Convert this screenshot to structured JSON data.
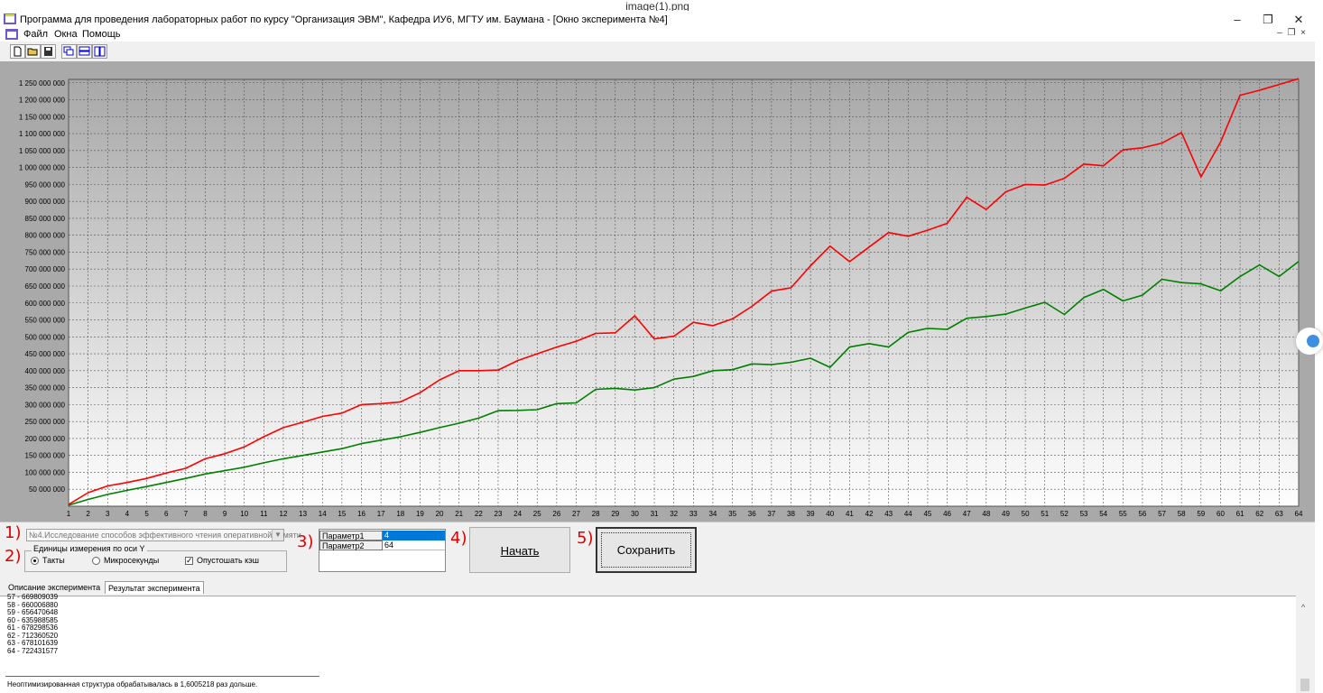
{
  "caption": "image(1).png",
  "window": {
    "title": "Программа для проведения лабораторных работ по курсу \"Организация ЭВМ\", Кафедра ИУ6, МГТУ им. Баумана - [Окно эксперимента №4]",
    "minimize": "–",
    "restore": "❐",
    "close": "✕",
    "mdi_minimize": "–",
    "mdi_restore": "❐",
    "mdi_close": "×"
  },
  "menu": {
    "items": [
      "Файл",
      "Окна",
      "Помощь"
    ]
  },
  "toolbar": {
    "icons": [
      "new-icon",
      "open-icon",
      "save-icon",
      "cascade-icon",
      "tile-horizontal-icon",
      "tile-vertical-icon"
    ]
  },
  "chart_data": {
    "type": "line",
    "x": [
      1,
      2,
      3,
      4,
      5,
      6,
      7,
      8,
      9,
      10,
      11,
      12,
      13,
      14,
      15,
      16,
      17,
      18,
      19,
      20,
      21,
      22,
      23,
      24,
      25,
      26,
      27,
      28,
      29,
      30,
      31,
      32,
      33,
      34,
      35,
      36,
      37,
      38,
      39,
      40,
      41,
      42,
      43,
      44,
      45,
      46,
      47,
      48,
      49,
      50,
      51,
      52,
      53,
      54,
      55,
      56,
      57,
      58,
      59,
      60,
      61,
      62,
      63,
      64
    ],
    "xlim": [
      1,
      64
    ],
    "ylim": [
      0,
      1260000000
    ],
    "yticks": [
      50000000,
      100000000,
      150000000,
      200000000,
      250000000,
      300000000,
      350000000,
      400000000,
      450000000,
      500000000,
      550000000,
      600000000,
      650000000,
      700000000,
      750000000,
      800000000,
      850000000,
      900000000,
      950000000,
      1000000000,
      1050000000,
      1100000000,
      1150000000,
      1200000000,
      1250000000
    ],
    "ytick_labels": [
      "50 000 000",
      "100 000 000",
      "150 000 000",
      "200 000 000",
      "250 000 000",
      "300 000 000",
      "350 000 000",
      "400 000 000",
      "450 000 000",
      "500 000 000",
      "550 000 000",
      "600 000 000",
      "650 000 000",
      "700 000 000",
      "750 000 000",
      "800 000 000",
      "850 000 000",
      "900 000 000",
      "950 000 000",
      "1 000 000 000",
      "1 050 000 000",
      "1 100 000 000",
      "1 150 000 000",
      "1 200 000 000",
      "1 250 000 000"
    ],
    "grid": true,
    "series": [
      {
        "color": "#ff0000",
        "values": [
          5000000,
          40000000,
          60000000,
          70000000,
          82000000,
          98000000,
          112000000,
          140000000,
          155000000,
          175000000,
          205000000,
          232000000,
          248000000,
          265000000,
          275000000,
          300000000,
          303000000,
          308000000,
          335000000,
          373000000,
          400000000,
          400000000,
          402000000,
          430000000,
          450000000,
          470000000,
          487000000,
          510000000,
          512000000,
          562000000,
          494000000,
          502000000,
          543000000,
          533000000,
          553000000,
          590000000,
          635000000,
          645000000,
          710000000,
          768000000,
          722000000,
          765000000,
          808000000,
          797000000,
          815000000,
          835000000,
          912000000,
          876000000,
          928000000,
          950000000,
          948000000,
          968000000,
          1010000000,
          1005000000,
          1052000000,
          1058000000,
          1072000000,
          1103000000,
          972000000,
          1075000000,
          1213000000,
          1228000000,
          1245000000,
          1262000000
        ]
      },
      {
        "color": "#008000",
        "values": [
          3000000,
          20000000,
          35000000,
          47000000,
          58000000,
          70000000,
          82000000,
          95000000,
          105000000,
          115000000,
          128000000,
          140000000,
          150000000,
          160000000,
          170000000,
          185000000,
          195000000,
          205000000,
          218000000,
          232000000,
          245000000,
          260000000,
          282000000,
          283000000,
          285000000,
          303000000,
          305000000,
          345000000,
          348000000,
          343000000,
          350000000,
          375000000,
          383000000,
          400000000,
          403000000,
          420000000,
          418000000,
          425000000,
          437000000,
          410000000,
          470000000,
          480000000,
          470000000,
          513000000,
          525000000,
          522000000,
          555000000,
          560000000,
          567000000,
          585000000,
          602000000,
          566000000,
          616000000,
          640000000,
          606000000,
          623000000,
          670000000,
          660000000,
          656470648,
          635988585,
          678298536,
          712360520,
          678101639,
          722431577
        ]
      }
    ]
  },
  "controls": {
    "experiment_select": "№4.Исследование способов эффективного чтения оперативной памяти",
    "units_group_label": "Единицы измерения по оси Y",
    "radio_ticks": "Такты",
    "radio_micro": "Микросекунды",
    "checkbox_flush": "Опустошать кэш",
    "checkbox_mark": "✓",
    "params": [
      {
        "name": "Параметр1",
        "value": "4"
      },
      {
        "name": "Параметр2",
        "value": "64"
      }
    ],
    "start_label": "Начать",
    "save_label": "Сохранить"
  },
  "annotations": {
    "n1": "1)",
    "n2": "2)",
    "n3": "3)",
    "n4": "4)",
    "n5": "5)"
  },
  "tabs": [
    "Описание эксперимента",
    "Результат эксперимента"
  ],
  "results": {
    "lines": "57 - 669809039\n58 - 660006880\n59 - 656470648\n60 - 635988585\n61 - 678298536\n62 - 712360520\n63 - 678101639\n64 - 722431577",
    "summary": "Неоптимизированная структура обрабатывалась в 1,6005218 раз дольше."
  },
  "scrollbar": {
    "up_arrow": "^"
  }
}
